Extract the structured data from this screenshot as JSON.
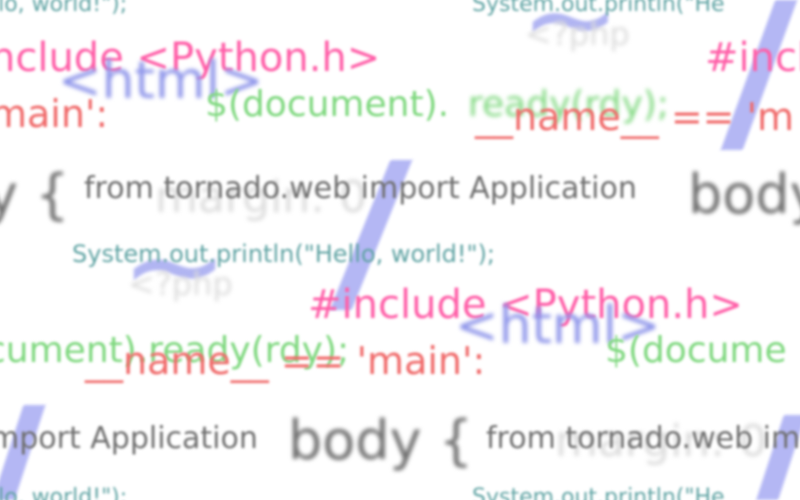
{
  "snippets": {
    "hello_top": "llo, world!\");",
    "sysout_top": "System.out.println(\"He",
    "include_1": "nclude <Python.h>",
    "include_top_right": "#incl",
    "html_1": "<html>",
    "php_top": "<?php",
    "name_left": "main':",
    "document_1": "$(document).",
    "ready_1": "ready(rdy);",
    "name_1": "__name__ == 'm",
    "body_left": "y {",
    "tornado_1": "from tornado.web import Application",
    "body_right": "body",
    "margin_1": "margin: 0",
    "sysout_mid": "System.out.println(\"Hello, world!\");",
    "php_mid": "<?php",
    "include_2": "#include <Python.h>",
    "html_2": "<html>",
    "ready_left": "cument).ready(rdy);",
    "name_2": "__name__ == 'main':",
    "document_2": "$(docume",
    "tornado_left": "mport Application",
    "body_mid": "body {",
    "tornado_2": "from tornado.web im",
    "margin_2": "margin: 0",
    "hello_bottom": "llo, world!\");",
    "sysout_bottom": "System.out.println(\"He",
    "tilde_glyph": "~"
  },
  "colors": {
    "pink": "#ff5fa8",
    "red": "#f06a6a",
    "green": "#7fd87f",
    "teal": "#5fa3a3",
    "gray": "#6f6f6f",
    "blue": "#8f96ea"
  }
}
